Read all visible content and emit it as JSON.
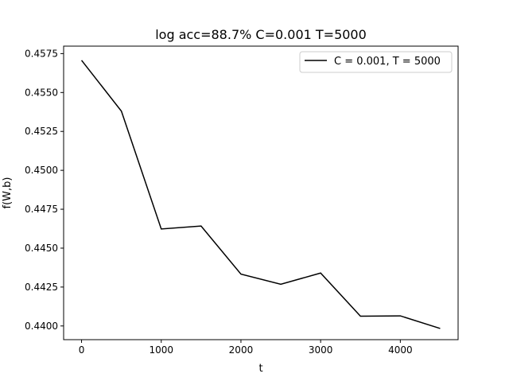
{
  "chart_data": {
    "type": "line",
    "title": "log acc=88.7% C=0.001 T=5000",
    "xlabel": "t",
    "ylabel": "f(W,b)",
    "xlim": [
      -225,
      4725
    ],
    "ylim": [
      0.43912,
      0.45798
    ],
    "xticks": [
      0,
      1000,
      2000,
      3000,
      4000
    ],
    "xtick_labels": [
      "0",
      "1000",
      "2000",
      "3000",
      "4000"
    ],
    "yticks": [
      0.44,
      0.4425,
      0.445,
      0.4475,
      0.45,
      0.4525,
      0.455,
      0.4575
    ],
    "ytick_labels": [
      "0.4400",
      "0.4425",
      "0.4450",
      "0.4475",
      "0.4500",
      "0.4525",
      "0.4550",
      "0.4575"
    ],
    "grid": false,
    "legend_position": "upper right",
    "series": [
      {
        "name": "C = 0.001, T = 5000",
        "color": "#000000",
        "x": [
          0,
          500,
          1000,
          1500,
          2000,
          2500,
          3000,
          3500,
          4000,
          4500
        ],
        "y": [
          0.45707,
          0.4538,
          0.44623,
          0.44642,
          0.44333,
          0.44268,
          0.4434,
          0.44063,
          0.44065,
          0.43984
        ]
      }
    ]
  }
}
